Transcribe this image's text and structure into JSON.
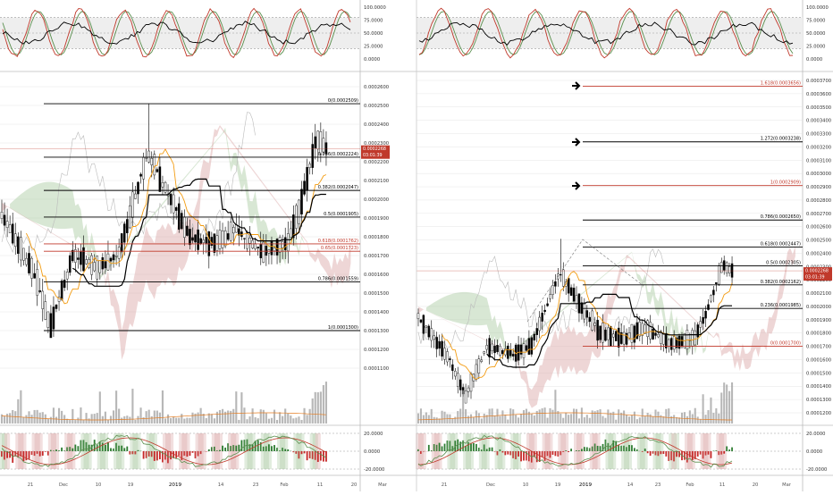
{
  "left_chart": {
    "stoch_axis": [
      "100.0000",
      "75.0000",
      "50.0000",
      "25.0000",
      "0.0000"
    ],
    "price_axis": [
      "0.0002600",
      "0.0002500",
      "0.0002400",
      "0.0002300",
      "0.0002200",
      "0.0002100",
      "0.0002000",
      "0.0001900",
      "0.0001800",
      "0.0001700",
      "0.0001600",
      "0.0001500",
      "0.0001400",
      "0.0001300",
      "0.0001200",
      "0.0001100"
    ],
    "current_price": "0.0002268",
    "countdown": "03:01:39",
    "fib_levels": [
      {
        "label": "0(0.0002509)",
        "price": 0.0002509,
        "color": "#000000"
      },
      {
        "label": "0.236(0.0002224)",
        "price": 0.0002224,
        "color": "#000000"
      },
      {
        "label": "0.382(0.0002047)",
        "price": 0.0002047,
        "color": "#000000"
      },
      {
        "label": "0.5(0.0001905)",
        "price": 0.0001905,
        "color": "#000000"
      },
      {
        "label": "0.618(0.0001762)",
        "price": 0.0001762,
        "color": "#c0392b"
      },
      {
        "label": "0.65(0.0001723)",
        "price": 0.0001723,
        "color": "#c0392b"
      },
      {
        "label": "0.786(0.0001559)",
        "price": 0.0001559,
        "color": "#000000"
      },
      {
        "label": "1(0.0001300)",
        "price": 0.00013,
        "color": "#000000"
      }
    ],
    "macd_axis": [
      "20.0000",
      "0.0000",
      "-20.0000"
    ],
    "time_axis": [
      "21",
      "Dec",
      "10",
      "19",
      "2019",
      "14",
      "23",
      "Feb",
      "11",
      "20",
      "Mar"
    ]
  },
  "right_chart": {
    "stoch_axis": [
      "100.0000",
      "75.0000",
      "50.0000",
      "25.0000",
      "0.0000"
    ],
    "price_axis": [
      "0.0003700",
      "0.0003600",
      "0.0003500",
      "0.0003400",
      "0.0003300",
      "0.0003200",
      "0.0003100",
      "0.0003000",
      "0.0002900",
      "0.0002800",
      "0.0002700",
      "0.0002600",
      "0.0002500",
      "0.0002400",
      "0.0002300",
      "0.0002200",
      "0.0002100",
      "0.0002000",
      "0.0001900",
      "0.0001800",
      "0.0001700",
      "0.0001600",
      "0.0001500",
      "0.0001400",
      "0.0001300",
      "0.0001200"
    ],
    "current_price": "0.0002268",
    "countdown": "03:01:39",
    "fib_levels": [
      {
        "label": "1.618(0.0003656)",
        "price": 0.0003656,
        "color": "#c0392b"
      },
      {
        "label": "1.272(0.0003238)",
        "price": 0.0003238,
        "color": "#000000"
      },
      {
        "label": "1(0.0002909)",
        "price": 0.0002909,
        "color": "#c0392b"
      },
      {
        "label": "0.786(0.0002650)",
        "price": 0.000265,
        "color": "#000000"
      },
      {
        "label": "0.618(0.0002447)",
        "price": 0.0002447,
        "color": "#000000"
      },
      {
        "label": "0.5(0.0002305)",
        "price": 0.0002305,
        "color": "#000000"
      },
      {
        "label": "0.382(0.0002162)",
        "price": 0.0002162,
        "color": "#000000"
      },
      {
        "label": "0.236(0.0001985)",
        "price": 0.0001985,
        "color": "#000000"
      },
      {
        "label": "0(0.0001700)",
        "price": 0.00017,
        "color": "#c0392b"
      }
    ],
    "macd_axis": [
      "20.0000",
      "0.0000",
      "-20.0000"
    ],
    "time_axis": [
      "21",
      "Dec",
      "10",
      "19",
      "2019",
      "14",
      "23",
      "Feb",
      "11",
      "20",
      "Mar"
    ]
  },
  "colors": {
    "candle": "#000000",
    "tenkan": "#f39c12",
    "kijun": "#000000",
    "cloud_bull": "#a8c9a0",
    "cloud_bear": "#d9a3a3",
    "price_tag": "#c0392b",
    "volume": "#999999",
    "volume_ma": "#e67e22",
    "stoch_k": "#c0392b",
    "stoch_d": "#5a8f4e",
    "stoch_rsi": "#000000",
    "grid": "#e6e6e6"
  }
}
